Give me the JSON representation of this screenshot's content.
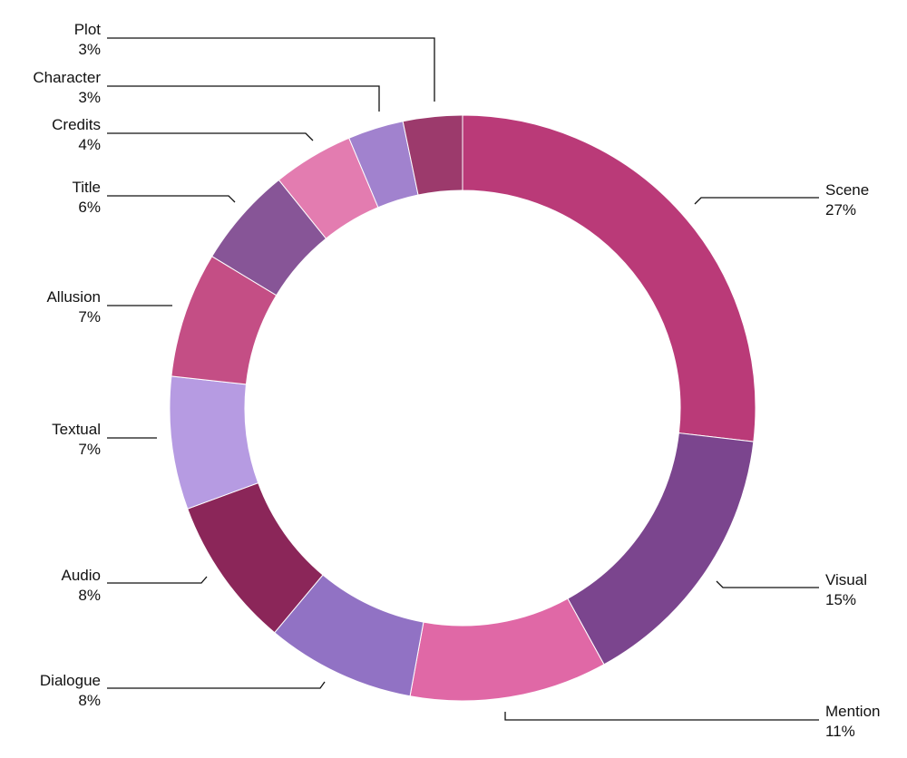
{
  "chart_data": {
    "type": "pie",
    "variant": "donut",
    "start_angle_degrees": 0,
    "direction": "clockwise",
    "slices": [
      {
        "label": "Scene",
        "percent_label": "27%",
        "value": 27.1,
        "color": "#BA3A78"
      },
      {
        "label": "Visual",
        "percent_label": "15%",
        "value": 15.3,
        "color": "#7B458E"
      },
      {
        "label": "Mention",
        "percent_label": "11%",
        "value": 11.0,
        "color": "#E068A6"
      },
      {
        "label": "Dialogue",
        "percent_label": "8%",
        "value": 8.3,
        "color": "#9172C4"
      },
      {
        "label": "Audio",
        "percent_label": "8%",
        "value": 8.4,
        "color": "#8B2659"
      },
      {
        "label": "Textual",
        "percent_label": "7%",
        "value": 7.4,
        "color": "#B69BE2"
      },
      {
        "label": "Allusion",
        "percent_label": "7%",
        "value": 7.0,
        "color": "#C44E85"
      },
      {
        "label": "Title",
        "percent_label": "6%",
        "value": 5.6,
        "color": "#875597"
      },
      {
        "label": "Credits",
        "percent_label": "4%",
        "value": 4.5,
        "color": "#E37CB0"
      },
      {
        "label": "Character",
        "percent_label": "3%",
        "value": 3.1,
        "color": "#A182CE"
      },
      {
        "label": "Plot",
        "percent_label": "3%",
        "value": 3.3,
        "color": "#9C3A6C"
      }
    ]
  }
}
